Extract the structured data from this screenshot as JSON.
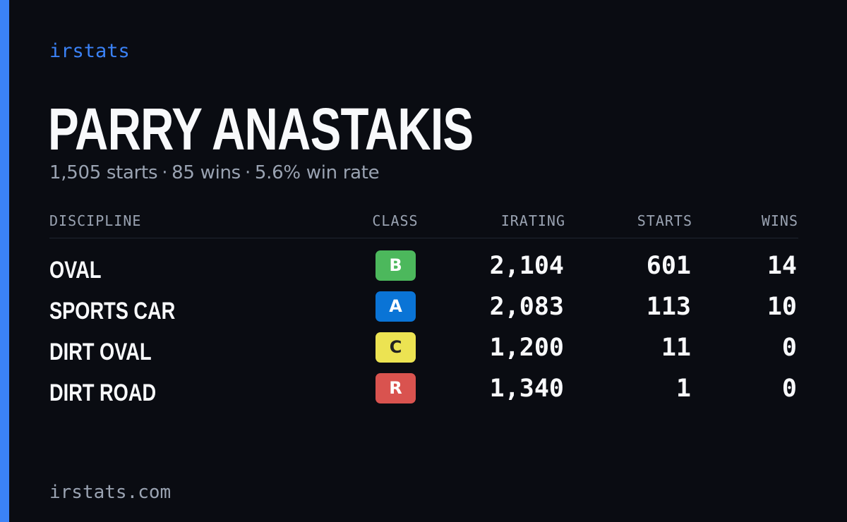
{
  "brand": "irstats",
  "driver": {
    "name": "PARRY ANASTAKIS",
    "summary": {
      "starts": "1,505 starts",
      "wins": "85 wins",
      "win_rate": "5.6% win rate",
      "separator": "·"
    }
  },
  "table": {
    "headers": {
      "discipline": "DISCIPLINE",
      "class": "CLASS",
      "irating": "IRATING",
      "starts": "STARTS",
      "wins": "WINS"
    },
    "rows": [
      {
        "discipline": "OVAL",
        "class": "B",
        "class_color": "#4cb85c",
        "class_text_color": "#ffffff",
        "irating": "2,104",
        "starts": "601",
        "wins": "14"
      },
      {
        "discipline": "SPORTS CAR",
        "class": "A",
        "class_color": "#0a74d6",
        "class_text_color": "#ffffff",
        "irating": "2,083",
        "starts": "113",
        "wins": "10"
      },
      {
        "discipline": "DIRT OVAL",
        "class": "C",
        "class_color": "#ece352",
        "class_text_color": "#222222",
        "irating": "1,200",
        "starts": "11",
        "wins": "0"
      },
      {
        "discipline": "DIRT ROAD",
        "class": "R",
        "class_color": "#d9534f",
        "class_text_color": "#ffffff",
        "irating": "1,340",
        "starts": "1",
        "wins": "0"
      }
    ]
  },
  "footer": "irstats.com",
  "colors": {
    "accent": "#3b82f6",
    "background": "#0a0c12",
    "muted_text": "#9aa3b2"
  }
}
